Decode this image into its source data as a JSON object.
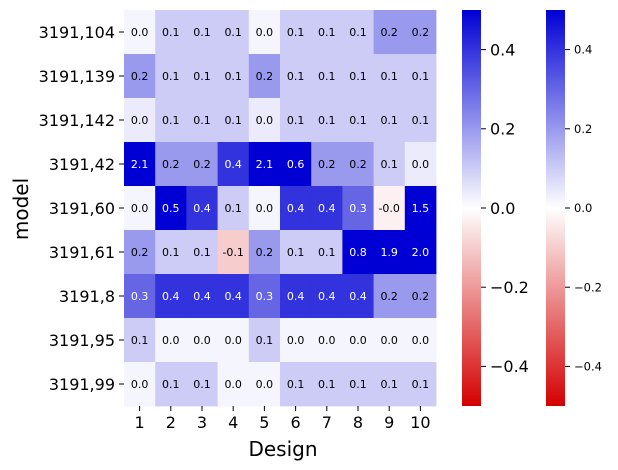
{
  "chart_data": {
    "type": "heatmap",
    "xlabel": "Design",
    "ylabel": "model",
    "x_categories": [
      "1",
      "2",
      "3",
      "4",
      "5",
      "6",
      "7",
      "8",
      "9",
      "10"
    ],
    "y_categories": [
      "3191,104",
      "3191,139",
      "3191,142",
      "3191,42",
      "3191,60",
      "3191,61",
      "3191,8",
      "3191,95",
      "3191,99"
    ],
    "values": [
      [
        0.02,
        0.1,
        0.1,
        0.1,
        0.02,
        0.1,
        0.1,
        0.1,
        0.2,
        0.2
      ],
      [
        0.2,
        0.1,
        0.1,
        0.1,
        0.2,
        0.1,
        0.1,
        0.1,
        0.1,
        0.1
      ],
      [
        0.04,
        0.1,
        0.1,
        0.1,
        0.04,
        0.1,
        0.1,
        0.1,
        0.1,
        0.1
      ],
      [
        2.1,
        0.2,
        0.2,
        0.4,
        2.1,
        0.6,
        0.2,
        0.2,
        0.1,
        0.04
      ],
      [
        0.02,
        0.5,
        0.4,
        0.1,
        0.02,
        0.4,
        0.4,
        0.3,
        -0.03,
        1.5
      ],
      [
        0.2,
        0.1,
        0.1,
        -0.1,
        0.2,
        0.1,
        0.1,
        0.8,
        1.9,
        2.0
      ],
      [
        0.3,
        0.4,
        0.4,
        0.4,
        0.3,
        0.4,
        0.4,
        0.4,
        0.2,
        0.2
      ],
      [
        0.1,
        0.02,
        0.02,
        0.02,
        0.1,
        0.02,
        0.02,
        0.02,
        0.02,
        0.02
      ],
      [
        0.02,
        0.1,
        0.1,
        0.02,
        0.02,
        0.1,
        0.1,
        0.1,
        0.1,
        0.1
      ]
    ],
    "annotations": [
      [
        "0.0",
        "0.1",
        "0.1",
        "0.1",
        "0.0",
        "0.1",
        "0.1",
        "0.1",
        "0.2",
        "0.2"
      ],
      [
        "0.2",
        "0.1",
        "0.1",
        "0.1",
        "0.2",
        "0.1",
        "0.1",
        "0.1",
        "0.1",
        "0.1"
      ],
      [
        "0.0",
        "0.1",
        "0.1",
        "0.1",
        "0.0",
        "0.1",
        "0.1",
        "0.1",
        "0.1",
        "0.1"
      ],
      [
        "2.1",
        "0.2",
        "0.2",
        "0.4",
        "2.1",
        "0.6",
        "0.2",
        "0.2",
        "0.1",
        "0.0"
      ],
      [
        "0.0",
        "0.5",
        "0.4",
        "0.1",
        "0.0",
        "0.4",
        "0.4",
        "0.3",
        "-0.0",
        "1.5"
      ],
      [
        "0.2",
        "0.1",
        "0.1",
        "-0.1",
        "0.2",
        "0.1",
        "0.1",
        "0.8",
        "1.9",
        "2.0"
      ],
      [
        "0.3",
        "0.4",
        "0.4",
        "0.4",
        "0.3",
        "0.4",
        "0.4",
        "0.4",
        "0.2",
        "0.2"
      ],
      [
        "0.1",
        "0.0",
        "0.0",
        "0.0",
        "0.1",
        "0.0",
        "0.0",
        "0.0",
        "0.0",
        "0.0"
      ],
      [
        "0.0",
        "0.1",
        "0.1",
        "0.0",
        "0.0",
        "0.1",
        "0.1",
        "0.1",
        "0.1",
        "0.1"
      ]
    ],
    "vmin": -0.5,
    "vmax": 0.5,
    "colormap": {
      "low": "#d40000",
      "mid": "#ffffff",
      "high": "#0000d4"
    },
    "colorbars": [
      {
        "ticks": [
          0.4,
          0.2,
          0.0,
          -0.2,
          -0.4
        ],
        "tick_labels": [
          "0.4",
          "0.2",
          "0.0",
          "−0.2",
          "−0.4"
        ]
      },
      {
        "ticks": [
          0.4,
          0.2,
          0.0,
          -0.2,
          -0.4
        ],
        "tick_labels": [
          "0.4",
          "0.2",
          "0.0",
          "−0.2",
          "−0.4"
        ]
      }
    ]
  }
}
